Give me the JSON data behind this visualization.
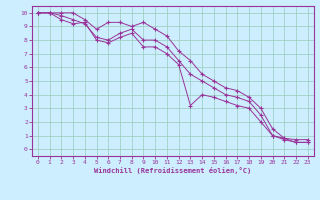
{
  "bg_color": "#cceeff",
  "line_color": "#993399",
  "grid_color": "#99ccbb",
  "xlabel": "Windchill (Refroidissement éolien,°C)",
  "xlim": [
    -0.5,
    23.5
  ],
  "ylim": [
    -0.5,
    10.5
  ],
  "xticks": [
    0,
    1,
    2,
    3,
    4,
    5,
    6,
    7,
    8,
    9,
    10,
    11,
    12,
    13,
    14,
    15,
    16,
    17,
    18,
    19,
    20,
    21,
    22,
    23
  ],
  "yticks": [
    0,
    1,
    2,
    3,
    4,
    5,
    6,
    7,
    8,
    9,
    10
  ],
  "line1_x": [
    0,
    1,
    2,
    3,
    4,
    5,
    6,
    7,
    8,
    9,
    10,
    11,
    12,
    13,
    14,
    15,
    16,
    17,
    18,
    19,
    20,
    21,
    22,
    23
  ],
  "line1_y": [
    10,
    10,
    10,
    10,
    9.5,
    8.8,
    9.3,
    9.3,
    9.0,
    9.3,
    8.8,
    8.3,
    7.2,
    6.5,
    5.5,
    5.0,
    4.5,
    4.3,
    3.8,
    3.0,
    1.5,
    0.8,
    0.7,
    0.7
  ],
  "line2_x": [
    0,
    1,
    2,
    3,
    4,
    5,
    6,
    7,
    8,
    9,
    10,
    11,
    12,
    13,
    14,
    15,
    16,
    17,
    18,
    19,
    20,
    21,
    22,
    23
  ],
  "line2_y": [
    10,
    10,
    9.8,
    9.5,
    9.2,
    8.2,
    8.0,
    8.5,
    8.8,
    8.0,
    8.0,
    7.5,
    6.5,
    5.5,
    5.0,
    4.5,
    4.0,
    3.8,
    3.5,
    2.5,
    1.0,
    0.8,
    0.5,
    0.5
  ],
  "line3_x": [
    0,
    1,
    2,
    3,
    4,
    5,
    6,
    7,
    8,
    9,
    10,
    11,
    12,
    13,
    14,
    15,
    16,
    17,
    18,
    19,
    20,
    21,
    22,
    23
  ],
  "line3_y": [
    10,
    10,
    9.5,
    9.2,
    9.3,
    8.0,
    7.8,
    8.2,
    8.5,
    7.5,
    7.5,
    7.0,
    6.2,
    3.2,
    4.0,
    3.8,
    3.5,
    3.2,
    3.0,
    2.0,
    1.0,
    0.7,
    0.5,
    0.5
  ]
}
